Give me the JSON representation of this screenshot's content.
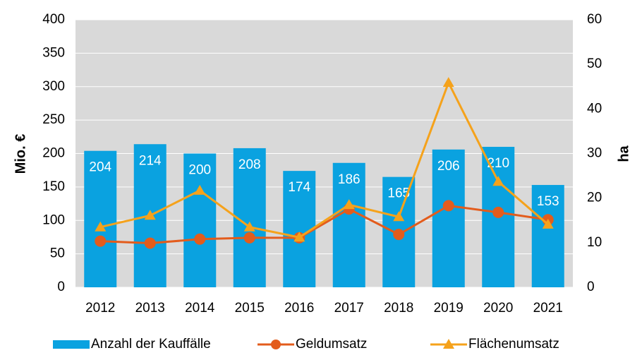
{
  "chart_data": {
    "type": "bar_line",
    "categories": [
      "2012",
      "2013",
      "2014",
      "2015",
      "2016",
      "2017",
      "2018",
      "2019",
      "2020",
      "2021"
    ],
    "series": [
      {
        "name": "Anzahl der Kauffälle",
        "type": "bar",
        "color": "#0aa2e0",
        "values": [
          204,
          214,
          200,
          208,
          174,
          186,
          165,
          206,
          210,
          153
        ]
      },
      {
        "name": "Geldumsatz",
        "type": "line",
        "marker": "circle",
        "color": "#e35c1c",
        "values": [
          69,
          66,
          72,
          74,
          74,
          117,
          79,
          122,
          112,
          101
        ]
      },
      {
        "name": "Flächenumsatz",
        "type": "line",
        "marker": "triangle",
        "color": "#f5a21b",
        "axis": "y2",
        "values": [
          13.5,
          16.1,
          21.7,
          13.5,
          11.2,
          18.5,
          15.8,
          45.9,
          23.7,
          14.1
        ]
      }
    ],
    "ylabel": "Mio. €",
    "y2label": "ha",
    "ylim": [
      0,
      400
    ],
    "yticks": [
      0,
      50,
      100,
      150,
      200,
      250,
      300,
      350,
      400
    ],
    "y2lim": [
      0,
      60
    ],
    "y2ticks": [
      0,
      10,
      20,
      30,
      40,
      50,
      60
    ],
    "grid": true,
    "legend": "bottom"
  }
}
